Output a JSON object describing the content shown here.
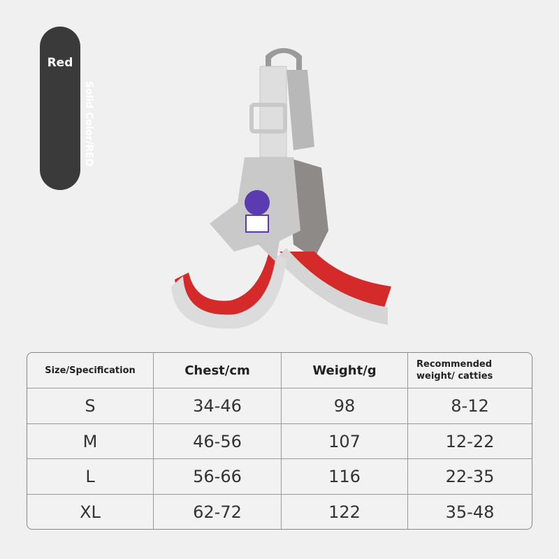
{
  "badge": {
    "color": "Red",
    "variant": "Solid Color/RED"
  },
  "product": {
    "logo_colors": {
      "strap": "#d8d8d8",
      "padding": "#d42a2a",
      "panel": "#bdbdbd",
      "logo": "#5b3bb0"
    }
  },
  "table": {
    "headers": [
      "Size/Specification",
      "Chest/cm",
      "Weight/g",
      "Recommended weight/ catties"
    ],
    "rows": [
      [
        "S",
        "34-46",
        "98",
        "8-12"
      ],
      [
        "M",
        "46-56",
        "107",
        "12-22"
      ],
      [
        "L",
        "56-66",
        "116",
        "22-35"
      ],
      [
        "XL",
        "62-72",
        "122",
        "35-48"
      ]
    ]
  }
}
